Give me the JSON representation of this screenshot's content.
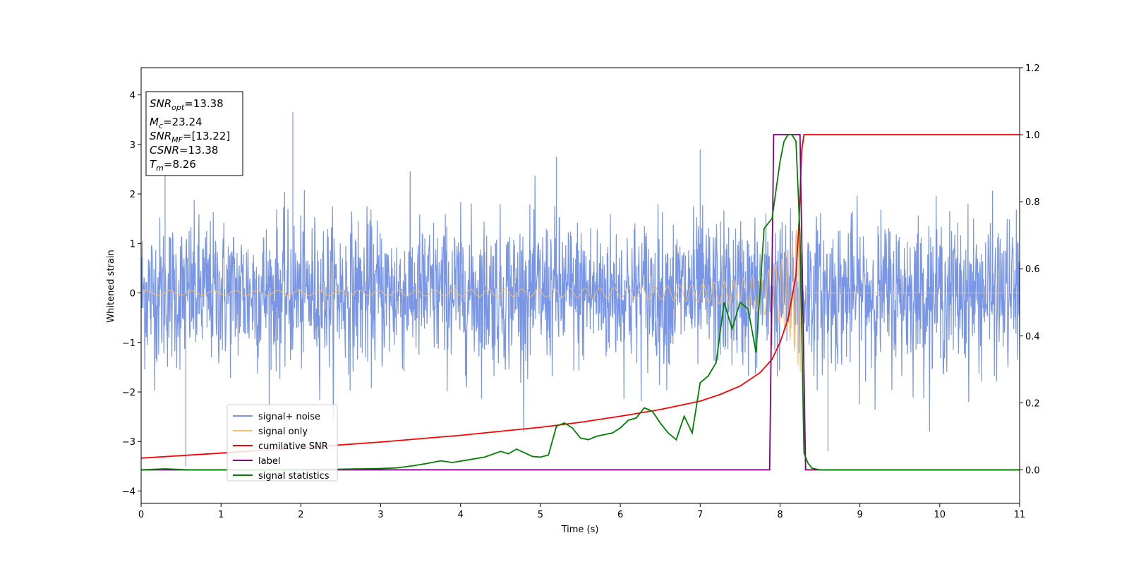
{
  "chart_data": {
    "type": "line",
    "title": "",
    "xlabel": "Time (s)",
    "ylabel": "Whitened strain",
    "xlim": [
      0,
      11
    ],
    "ylim": [
      -4.25,
      4.55
    ],
    "y2lim": [
      -0.1,
      1.2
    ],
    "xticks": [
      "0",
      "1",
      "2",
      "3",
      "4",
      "5",
      "6",
      "7",
      "8",
      "9",
      "10",
      "11"
    ],
    "yticks": [
      "−4",
      "−3",
      "−2",
      "−1",
      "0",
      "1",
      "2",
      "3",
      "4"
    ],
    "y2ticks": [
      "0.0",
      "0.2",
      "0.4",
      "0.6",
      "0.8",
      "1.0",
      "1.2"
    ],
    "grid": false,
    "legend_position": "lower-left",
    "annotation": [
      {
        "name": "SNR",
        "sub": "opt",
        "value": "=13.38"
      },
      {
        "name": "M",
        "sub": "c",
        "value": "=23.24"
      },
      {
        "name": "SNR",
        "sub": "MF",
        "value": "=[13.22]"
      },
      {
        "name": "CSNR",
        "sub": "",
        "value": "=13.38"
      },
      {
        "name": "T",
        "sub": "m",
        "value": "=8.26"
      }
    ],
    "series": [
      {
        "name": "signal+ noise",
        "axis": "left",
        "color": "#7895e6",
        "noise_std": 0.75,
        "notable_peaks": [
          [
            0.56,
            -3.5
          ],
          [
            1.9,
            3.65
          ],
          [
            0.3,
            2.75
          ],
          [
            5.2,
            2.75
          ],
          [
            7.0,
            2.9
          ],
          [
            8.6,
            -3.2
          ]
        ]
      },
      {
        "name": "signal only",
        "axis": "left",
        "color": "#f5c070",
        "chirp": {
          "t_merger": 8.26,
          "amp_start": 0.02,
          "amp_peak": 1.8
        }
      },
      {
        "name": "cumilative SNR",
        "axis": "right",
        "color": "#ff0000",
        "x": [
          0,
          1,
          2,
          3,
          4,
          4.5,
          5,
          5.5,
          6,
          6.5,
          7,
          7.25,
          7.5,
          7.75,
          7.9,
          8.0,
          8.1,
          8.2,
          8.24,
          8.27,
          8.3,
          11
        ],
        "y": [
          0.035,
          0.05,
          0.066,
          0.083,
          0.103,
          0.115,
          0.127,
          0.142,
          0.16,
          0.18,
          0.205,
          0.225,
          0.25,
          0.29,
          0.33,
          0.38,
          0.45,
          0.58,
          0.75,
          0.95,
          1.0,
          1.0
        ]
      },
      {
        "name": "label",
        "axis": "right",
        "color": "#800080",
        "x": [
          0,
          7.87,
          7.92,
          8.25,
          8.32,
          11
        ],
        "y": [
          0,
          0,
          1.0,
          1.0,
          0,
          0
        ]
      },
      {
        "name": "signal statistics",
        "axis": "right",
        "color": "#008000",
        "x": [
          0,
          0.3,
          0.6,
          1.0,
          1.5,
          2.0,
          2.5,
          3.0,
          3.2,
          3.4,
          3.6,
          3.75,
          3.9,
          4.1,
          4.3,
          4.5,
          4.6,
          4.7,
          4.9,
          5.0,
          5.1,
          5.2,
          5.3,
          5.4,
          5.5,
          5.6,
          5.7,
          5.8,
          5.9,
          6.0,
          6.1,
          6.2,
          6.3,
          6.4,
          6.5,
          6.6,
          6.7,
          6.8,
          6.9,
          7.0,
          7.1,
          7.2,
          7.3,
          7.4,
          7.5,
          7.6,
          7.7,
          7.8,
          7.9,
          8.0,
          8.05,
          8.1,
          8.15,
          8.2,
          8.25,
          8.3,
          8.35,
          8.4,
          8.5,
          9,
          10,
          11
        ],
        "y": [
          0.0,
          0.003,
          0.0,
          0.0,
          0.0,
          0.001,
          0.002,
          0.004,
          0.006,
          0.012,
          0.02,
          0.027,
          0.022,
          0.03,
          0.038,
          0.055,
          0.048,
          0.062,
          0.04,
          0.038,
          0.044,
          0.13,
          0.14,
          0.125,
          0.095,
          0.09,
          0.1,
          0.105,
          0.11,
          0.125,
          0.148,
          0.155,
          0.185,
          0.175,
          0.14,
          0.11,
          0.09,
          0.16,
          0.11,
          0.26,
          0.28,
          0.32,
          0.5,
          0.42,
          0.5,
          0.48,
          0.35,
          0.72,
          0.75,
          0.92,
          0.98,
          1.0,
          1.0,
          0.98,
          0.7,
          0.05,
          0.02,
          0.005,
          0.0,
          0.0,
          0.0,
          0.0
        ]
      }
    ]
  }
}
